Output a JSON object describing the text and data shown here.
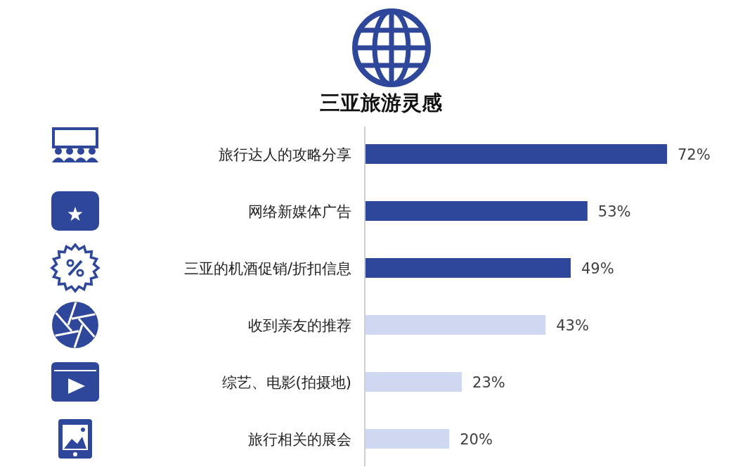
{
  "chart_data": {
    "type": "bar",
    "orientation": "horizontal",
    "title": "三亚旅游灵感",
    "categories": [
      "旅行达人的攻略分享",
      "网络新媒体广告",
      "三亚的机酒促销/折扣信息",
      "收到亲友的推荐",
      "综艺、电影(拍摄地)",
      "旅行相关的展会"
    ],
    "values": [
      72,
      53,
      49,
      43,
      23,
      20
    ],
    "value_labels": [
      "72%",
      "53%",
      "49%",
      "43%",
      "23%",
      "20%"
    ],
    "colors": [
      "#2f479b",
      "#2f479b",
      "#2f479b",
      "#d0d7f0",
      "#d0d7f0",
      "#d0d7f0"
    ]
  }
}
